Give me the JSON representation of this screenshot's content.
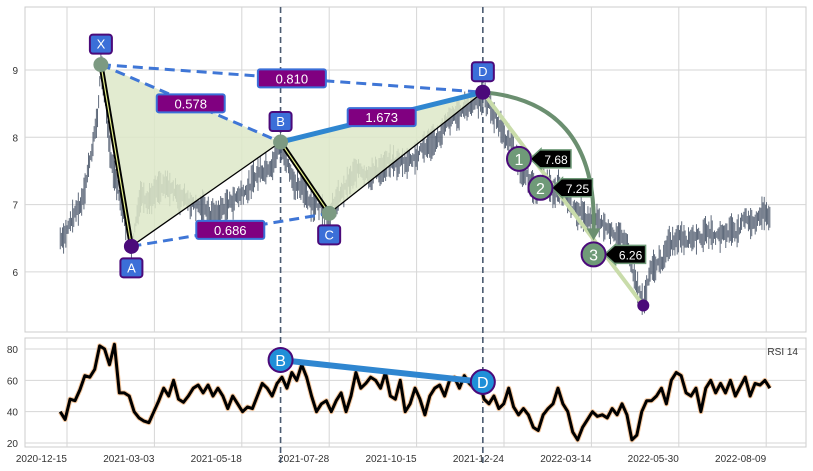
{
  "chart_data": {
    "type": "harmonic-pattern-ohlc",
    "price_panel": {
      "ylim": [
        5.1,
        9.94
      ],
      "yticks": [
        "6",
        "7",
        "8",
        "9"
      ],
      "price_anchors_day_value": [
        [
          -6,
          6.5
        ],
        [
          12,
          7.0
        ],
        [
          27,
          8.3
        ],
        [
          30,
          9.1
        ],
        [
          38,
          7.8
        ],
        [
          57,
          6.4
        ],
        [
          65,
          7.2
        ],
        [
          96,
          7.2
        ],
        [
          131,
          6.85
        ],
        [
          162,
          7.3
        ],
        [
          189,
          7.9
        ],
        [
          206,
          7.2
        ],
        [
          232,
          6.9
        ],
        [
          259,
          7.5
        ],
        [
          295,
          7.6
        ],
        [
          321,
          7.9
        ],
        [
          368,
          8.67
        ],
        [
          392,
          7.9
        ],
        [
          410,
          7.3
        ],
        [
          436,
          7.2
        ],
        [
          463,
          6.7
        ],
        [
          489,
          6.6
        ],
        [
          510,
          5.5
        ],
        [
          516,
          5.9
        ],
        [
          542,
          6.6
        ],
        [
          578,
          6.55
        ],
        [
          622,
          6.9
        ]
      ],
      "pattern_points": [
        {
          "name": "X",
          "day": 30,
          "value": 9.08
        },
        {
          "name": "A",
          "day": 57,
          "value": 6.38
        },
        {
          "name": "B",
          "day": 189,
          "value": 7.93
        },
        {
          "name": "C",
          "day": 232,
          "value": 6.87
        },
        {
          "name": "D",
          "day": 368,
          "value": 8.67
        }
      ],
      "ratios": [
        {
          "from": "X",
          "to": "B",
          "label": "0.578"
        },
        {
          "from": "X",
          "to": "D",
          "label": "0.810"
        },
        {
          "from": "A",
          "to": "C",
          "label": "0.686"
        },
        {
          "from": "B",
          "to": "D",
          "label": "1.673"
        }
      ],
      "projection_end": {
        "day": 510,
        "value": 5.5
      },
      "targets": [
        {
          "label": "1",
          "day": 400,
          "value": 7.68,
          "text": "7.68"
        },
        {
          "label": "2",
          "day": 419,
          "value": 7.25,
          "text": "7.25"
        },
        {
          "label": "3",
          "day": 466,
          "value": 6.26,
          "text": "6.26"
        }
      ]
    },
    "rsi_panel": {
      "title": "RSI 14",
      "ylim": [
        18,
        86
      ],
      "yticks": [
        "20",
        "40",
        "60",
        "80"
      ],
      "values": [
        40,
        35,
        48,
        47,
        54,
        63,
        62,
        67,
        82,
        80,
        70,
        83,
        52,
        52,
        50,
        40,
        36,
        34,
        33,
        40,
        47,
        55,
        50,
        60,
        48,
        46,
        50,
        55,
        57,
        52,
        57,
        50,
        55,
        50,
        42,
        50,
        45,
        40,
        43,
        42,
        50,
        58,
        55,
        50,
        58,
        62,
        55,
        65,
        60,
        70,
        62,
        50,
        40,
        45,
        47,
        40,
        47,
        52,
        40,
        50,
        65,
        55,
        58,
        62,
        60,
        55,
        65,
        50,
        48,
        60,
        40,
        45,
        55,
        48,
        38,
        50,
        55,
        57,
        50,
        60,
        62,
        55,
        63,
        58,
        55,
        60,
        48,
        45,
        50,
        42,
        45,
        55,
        43,
        38,
        42,
        38,
        30,
        28,
        38,
        42,
        45,
        55,
        45,
        40,
        27,
        22,
        30,
        35,
        40,
        37,
        38,
        36,
        42,
        38,
        45,
        38,
        22,
        25,
        40,
        47,
        47,
        50,
        55,
        45,
        60,
        65,
        63,
        52,
        50,
        55,
        40,
        55,
        60,
        52,
        58,
        52,
        60,
        50,
        56,
        62,
        50,
        58,
        57,
        60,
        55
      ],
      "day_range": [
        -6,
        622
      ],
      "divergence": [
        {
          "name": "B",
          "day": 189,
          "value": 73
        },
        {
          "name": "D",
          "day": 368,
          "value": 59
        }
      ]
    },
    "xticks": [
      "2020-12-15",
      "2021-03-03",
      "2021-05-18",
      "2021-07-28",
      "2021-10-15",
      "2021-12-24",
      "2022-03-14",
      "2022-05-30",
      "2022-08-09"
    ],
    "colors": {
      "bar": "#4f5b6e",
      "fill": "#dde8c8",
      "ratio_box": "#800080",
      "point_box": "#3b6fd8",
      "dashed": "#3f76d6",
      "bd_line": "#2f86d0",
      "target": "#6f9a78",
      "arc": "#6b8f70",
      "projection": "#c9dcaa",
      "rsi_point": "#1f8fd8"
    }
  }
}
